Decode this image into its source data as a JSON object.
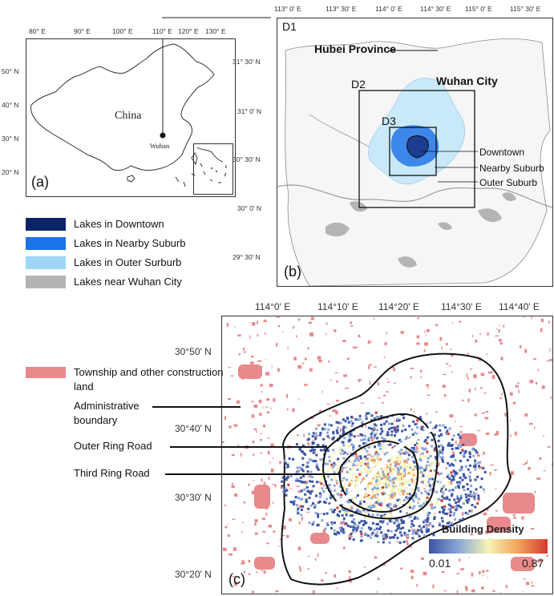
{
  "panel_a": {
    "label": "(a)",
    "country": "China",
    "city": "Wuhan",
    "lon_ticks": [
      "80° E",
      "90° E",
      "100° E",
      "110° E",
      "120° E",
      "130° E"
    ],
    "lat_ticks": [
      "50° N",
      "40° N",
      "30° N",
      "20° N"
    ]
  },
  "panel_b": {
    "label": "(b)",
    "d1": "D1",
    "d2": "D2",
    "d3": "D3",
    "province": "Hubei Province",
    "city": "Wuhan City",
    "downtown": "Downtown",
    "nearby": "Nearby Suburb",
    "outer": "Outer Suburb",
    "lon_ticks": [
      "113° 0' E",
      "113° 30' E",
      "114° 0' E",
      "114° 30' E",
      "115° 0' E",
      "115° 30' E"
    ],
    "lat_ticks": [
      "31° 30' N",
      "31° 0' N",
      "30° 30' N",
      "30° 0' N",
      "29° 30' N"
    ]
  },
  "legend_lakes": [
    {
      "label": "Lakes in Downtown",
      "color": "#0a2466"
    },
    {
      "label": "Lakes in Nearby Suburb",
      "color": "#1a74e8"
    },
    {
      "label": "Lakes in Outer Surburb",
      "color": "#9dd7f5"
    },
    {
      "label": "Lakes near Wuhan City",
      "color": "#b4b4b4"
    }
  ],
  "panel_c": {
    "label": "(c)",
    "lon_ticks": [
      "114°0' E",
      "114°10' E",
      "114°20' E",
      "114°30' E",
      "114°40' E"
    ],
    "lat_ticks": [
      "30°50' N",
      "30°40' N",
      "30°30' N",
      "30°20' N"
    ],
    "colorbar_title": "Building Density",
    "colorbar_min": "0.01",
    "colorbar_max": "0.87",
    "colorbar_colors": [
      "#3b55a3",
      "#8aa6d6",
      "#f6f3b6",
      "#f3a35b",
      "#d63a2f"
    ]
  },
  "legend_c": {
    "township": "Township and other construction land",
    "township_color": "#e8898c",
    "admin": "Administrative boundary",
    "outer_ring": "Outer Ring Road",
    "third_ring": "Third Ring Road"
  }
}
